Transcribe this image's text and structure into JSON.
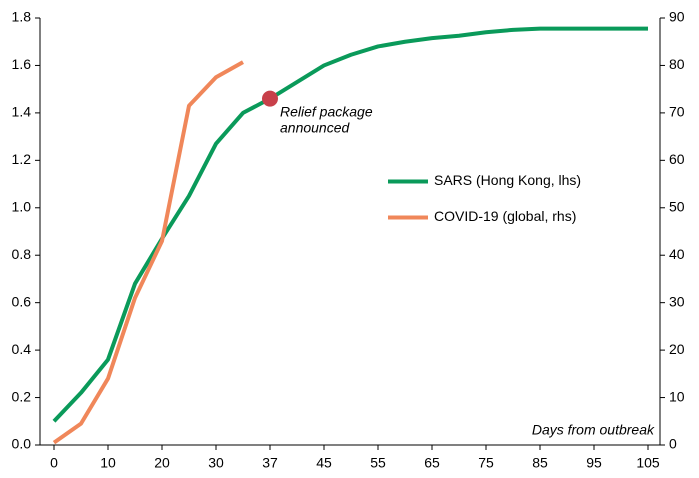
{
  "chart_data": {
    "type": "line",
    "categories": [
      "0",
      null,
      "10",
      null,
      "20",
      null,
      "30",
      null,
      "37",
      null,
      "45",
      null,
      "55",
      null,
      "65",
      null,
      "75",
      null,
      "85",
      null,
      "95",
      null,
      "105"
    ],
    "x_label": "Days from outbreak",
    "series": [
      {
        "name": "SARS (Hong Kong, lhs)",
        "color": "#0a9a5a",
        "axis": "y",
        "values": [
          0.1,
          0.22,
          0.36,
          0.68,
          0.87,
          1.05,
          1.27,
          1.4,
          1.46,
          1.53,
          1.6,
          1.645,
          1.68,
          1.7,
          1.715,
          1.725,
          1.74,
          1.75,
          1.755,
          1.755,
          1.755,
          1.755,
          1.755
        ]
      },
      {
        "name": "COVID-19 (global, rhs)",
        "color": "#f0875a",
        "axis": "y2",
        "values": [
          0.5,
          4.5,
          14,
          31,
          43,
          71.5,
          77.5,
          80.7,
          null,
          null,
          null,
          null,
          null,
          null,
          null,
          null,
          null,
          null,
          null,
          null,
          null,
          null,
          null
        ]
      }
    ],
    "ylim": [
      0,
      1.8
    ],
    "yticks": [
      {
        "value": 0,
        "label": "0.0"
      },
      0.2,
      0.4,
      0.6,
      0.8,
      {
        "value": 1,
        "label": "1.0"
      },
      1.2,
      1.4,
      1.6,
      1.8
    ],
    "y2lim": [
      0,
      90
    ],
    "y2ticks": [
      0,
      10,
      20,
      30,
      40,
      50,
      60,
      70,
      80,
      90
    ],
    "annotation": {
      "lines": [
        "Relief package",
        "announced"
      ],
      "color": "#c8404a",
      "series": 0,
      "point": 8
    },
    "legend": "center-right",
    "grid": false
  }
}
